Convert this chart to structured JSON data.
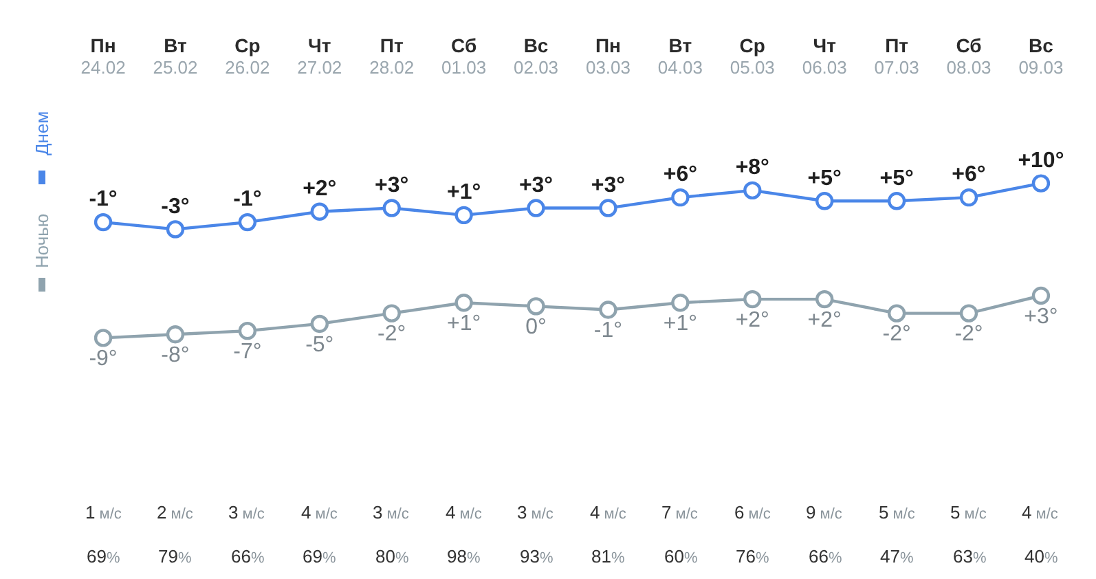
{
  "chart_data": [
    {
      "type": "line",
      "categories": [
        "Пн\n24.02",
        "Вт\n25.02",
        "Ср\n26.02",
        "Чт\n27.02",
        "Пт\n28.02",
        "Сб\n01.03",
        "Вс\n02.03",
        "Пн\n03.03",
        "Вт\n04.03",
        "Ср\n05.03",
        "Чт\n06.03",
        "Пт\n07.03",
        "Сб\n08.03",
        "Вс\n09.03"
      ],
      "series": [
        {
          "name": "Днем",
          "color": "#4a86e8",
          "values": [
            -1,
            -3,
            -1,
            2,
            3,
            1,
            3,
            3,
            6,
            8,
            5,
            5,
            6,
            10
          ],
          "value_labels": [
            "-1°",
            "-3°",
            "-1°",
            "+2°",
            "+3°",
            "+1°",
            "+3°",
            "+3°",
            "+6°",
            "+8°",
            "+5°",
            "+5°",
            "+6°",
            "+10°"
          ]
        }
      ],
      "tick_labels": "x",
      "legend": "left",
      "marker": "circle"
    },
    {
      "type": "line",
      "categories": [
        null,
        null,
        null,
        null,
        null,
        null,
        null,
        null,
        null,
        null,
        null,
        null,
        null,
        null
      ],
      "series": [
        {
          "name": "Ночью",
          "color": "#8fa3ae",
          "values": [
            -9,
            -8,
            -7,
            -5,
            -2,
            1,
            0,
            -1,
            1,
            2,
            2,
            -2,
            -2,
            3
          ],
          "value_labels": [
            "-9°",
            "-8°",
            "-7°",
            "-5°",
            "-2°",
            "+1°",
            "0°",
            "-1°",
            "+1°",
            "+2°",
            "+2°",
            "-2°",
            "-2°",
            "+3°"
          ]
        }
      ],
      "tick_labels": false,
      "legend": "left",
      "marker": "circle"
    },
    {
      "type": "other",
      "categories": [
        null,
        null,
        null,
        null,
        null,
        null,
        null,
        null,
        null,
        null,
        null,
        null,
        null,
        null
      ],
      "annotations": [
        "1 м/с",
        "2 м/с",
        "3 м/с",
        "4 м/с",
        "3 м/с",
        "4 м/с",
        "3 м/с",
        "4 м/с",
        "7 м/с",
        "6 м/с",
        "9 м/с",
        "5 м/с",
        "5 м/с",
        "4 м/с",
        "69%",
        "79%",
        "66%",
        "69%",
        "80%",
        "98%",
        "93%",
        "81%",
        "60%",
        "76%",
        "66%",
        "47%",
        "63%",
        "40%"
      ]
    }
  ]
}
